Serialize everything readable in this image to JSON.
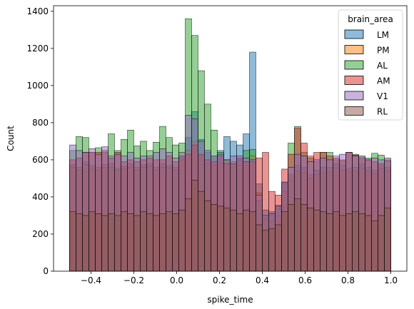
{
  "chart_data": {
    "type": "histogram",
    "xlabel": "spike_time",
    "ylabel": "Count",
    "xlim": [
      -0.575,
      1.075
    ],
    "ylim": [
      0,
      1430
    ],
    "x_ticks": [
      -0.4,
      -0.2,
      0.0,
      0.2,
      0.4,
      0.6,
      0.8,
      1.0
    ],
    "x_tick_labels": [
      "−0.4",
      "−0.2",
      "0.0",
      "0.2",
      "0.4",
      "0.6",
      "0.8",
      "1.0"
    ],
    "y_ticks": [
      0,
      200,
      400,
      600,
      800,
      1000,
      1200,
      1400
    ],
    "y_tick_labels": [
      "0",
      "200",
      "400",
      "600",
      "800",
      "1000",
      "1200",
      "1400"
    ],
    "bin_edges": [
      -0.5,
      -0.47,
      -0.44,
      -0.41,
      -0.38,
      -0.35,
      -0.32,
      -0.29,
      -0.26,
      -0.23,
      -0.2,
      -0.17,
      -0.14,
      -0.11,
      -0.08,
      -0.05,
      -0.02,
      0.01,
      0.04,
      0.07,
      0.1,
      0.13,
      0.16,
      0.19,
      0.22,
      0.25,
      0.28,
      0.31,
      0.34,
      0.37,
      0.4,
      0.43,
      0.46,
      0.49,
      0.52,
      0.55,
      0.58,
      0.61,
      0.64,
      0.67,
      0.7,
      0.73,
      0.76,
      0.79,
      0.82,
      0.85,
      0.88,
      0.91,
      0.94,
      0.97,
      1.0
    ],
    "grid": false,
    "legend": {
      "title": "brain_area",
      "placement": "top-right"
    },
    "series": [
      {
        "name": "LM",
        "color": "#1f77b4",
        "values": [
          575,
          560,
          590,
          570,
          560,
          575,
          580,
          555,
          565,
          580,
          560,
          575,
          580,
          560,
          580,
          570,
          560,
          620,
          720,
          860,
          710,
          640,
          620,
          650,
          725,
          700,
          680,
          740,
          1180,
          470,
          330,
          320,
          355,
          480,
          520,
          570,
          560,
          520,
          545,
          560,
          560,
          580,
          570,
          555,
          560,
          580,
          560,
          545,
          570,
          560
        ]
      },
      {
        "name": "PM",
        "color": "#ff7f0e",
        "values": [
          560,
          545,
          575,
          550,
          545,
          560,
          560,
          545,
          550,
          560,
          545,
          560,
          565,
          545,
          560,
          555,
          545,
          600,
          650,
          700,
          620,
          580,
          570,
          580,
          600,
          590,
          570,
          590,
          620,
          420,
          280,
          270,
          300,
          430,
          490,
          540,
          530,
          500,
          520,
          530,
          535,
          555,
          545,
          535,
          540,
          555,
          540,
          525,
          550,
          540
        ]
      },
      {
        "name": "AL",
        "color": "#2ca02c",
        "values": [
          650,
          725,
          720,
          640,
          665,
          640,
          740,
          650,
          710,
          760,
          675,
          700,
          650,
          695,
          780,
          720,
          680,
          690,
          1360,
          1270,
          1080,
          900,
          760,
          640,
          600,
          580,
          600,
          650,
          655,
          380,
          290,
          300,
          340,
          470,
          690,
          780,
          640,
          610,
          590,
          640,
          640,
          600,
          595,
          640,
          630,
          620,
          610,
          635,
          625,
          600
        ]
      },
      {
        "name": "AM",
        "color": "#d62728",
        "values": [
          600,
          610,
          640,
          640,
          640,
          650,
          610,
          640,
          590,
          600,
          590,
          600,
          610,
          600,
          600,
          620,
          590,
          620,
          630,
          680,
          630,
          600,
          590,
          620,
          580,
          580,
          610,
          590,
          590,
          610,
          640,
          430,
          410,
          550,
          630,
          770,
          690,
          620,
          640,
          640,
          620,
          610,
          600,
          640,
          625,
          610,
          600,
          590,
          580,
          595
        ]
      },
      {
        "name": "V1",
        "color": "#9467bd",
        "values": [
          680,
          650,
          640,
          660,
          630,
          670,
          620,
          630,
          620,
          640,
          610,
          620,
          620,
          640,
          660,
          640,
          610,
          640,
          840,
          820,
          700,
          650,
          620,
          630,
          600,
          620,
          620,
          610,
          600,
          410,
          300,
          310,
          350,
          480,
          560,
          630,
          620,
          590,
          600,
          610,
          600,
          620,
          630,
          640,
          620,
          620,
          600,
          610,
          600,
          610
        ]
      },
      {
        "name": "RL",
        "color": "#8c564b",
        "values": [
          320,
          310,
          300,
          320,
          310,
          300,
          310,
          300,
          320,
          310,
          300,
          320,
          310,
          300,
          310,
          320,
          310,
          330,
          390,
          490,
          430,
          380,
          360,
          350,
          340,
          330,
          310,
          330,
          320,
          250,
          220,
          230,
          250,
          320,
          360,
          390,
          360,
          340,
          330,
          320,
          310,
          320,
          300,
          310,
          320,
          310,
          300,
          270,
          300,
          340
        ]
      }
    ]
  }
}
